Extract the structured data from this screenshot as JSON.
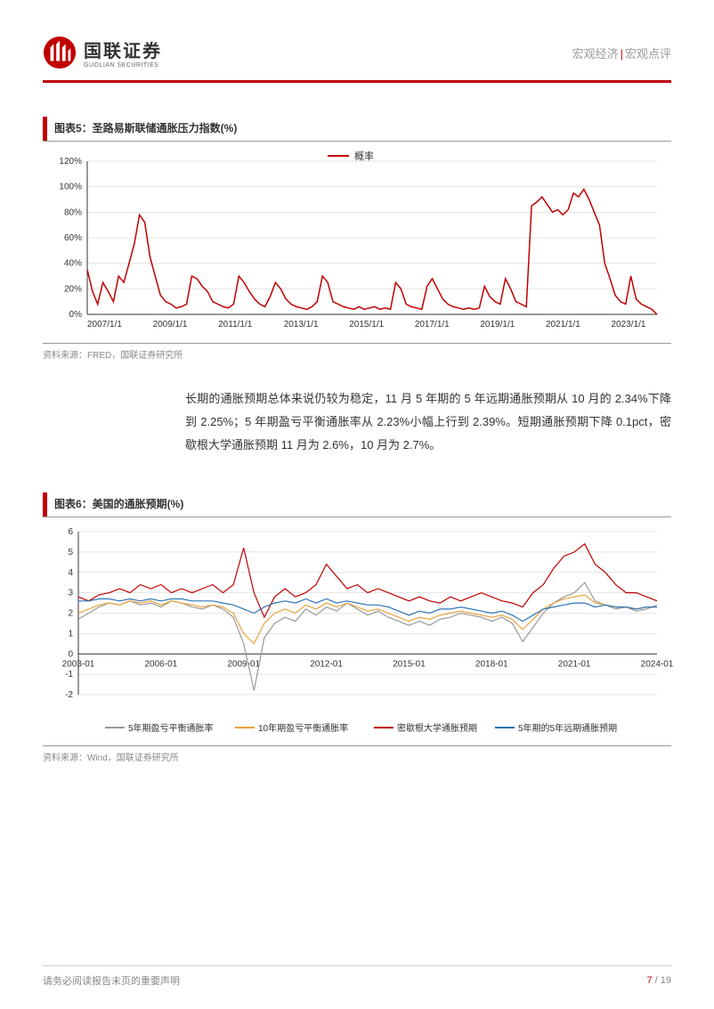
{
  "header": {
    "logo_cn": "国联证券",
    "logo_en": "GUOLIAN SECURITIES",
    "right_category": "宏观经济",
    "right_type": "宏观点评",
    "accent_color": "#c00000"
  },
  "chart5": {
    "title": "图表5：圣路易斯联储通胀压力指数(%)",
    "source": "资料来源：FRED，国联证券研究所",
    "type": "line",
    "legend_label": "概率",
    "series_color": "#c00000",
    "background_color": "#ffffff",
    "grid_color": "#cccccc",
    "axis_color": "#333333",
    "tick_fontsize": 10,
    "ylim": [
      0,
      120
    ],
    "ytick_step": 20,
    "yticks": [
      0,
      20,
      40,
      60,
      80,
      100,
      120
    ],
    "ytick_labels": [
      "0%",
      "20%",
      "40%",
      "60%",
      "80%",
      "100%",
      "120%"
    ],
    "xtick_labels": [
      "2007/1/1",
      "2009/1/1",
      "2011/1/1",
      "2013/1/1",
      "2015/1/1",
      "2017/1/1",
      "2019/1/1",
      "2021/1/1",
      "2023/1/1"
    ],
    "line_width": 1.5,
    "values": [
      35,
      18,
      8,
      25,
      18,
      10,
      30,
      25,
      40,
      55,
      78,
      72,
      45,
      30,
      15,
      10,
      8,
      5,
      6,
      8,
      30,
      28,
      22,
      18,
      10,
      8,
      6,
      5,
      8,
      30,
      25,
      18,
      12,
      8,
      6,
      14,
      25,
      20,
      12,
      8,
      6,
      5,
      4,
      6,
      10,
      30,
      25,
      10,
      8,
      6,
      5,
      4,
      6,
      4,
      5,
      6,
      4,
      5,
      4,
      25,
      20,
      8,
      6,
      5,
      4,
      22,
      28,
      20,
      12,
      8,
      6,
      5,
      4,
      5,
      4,
      5,
      22,
      14,
      10,
      8,
      28,
      20,
      10,
      8,
      6,
      85,
      88,
      92,
      86,
      80,
      82,
      78,
      82,
      95,
      92,
      98,
      90,
      80,
      70,
      40,
      28,
      15,
      10,
      8,
      30,
      12,
      8,
      6,
      4,
      0
    ]
  },
  "paragraph": "长期的通胀预期总体来说仍较为稳定，11 月 5 年期的 5 年远期通胀预期从 10 月的 2.34%下降到 2.25%；5 年期盈亏平衡通胀率从 2.23%小幅上行到 2.39%。短期通胀预期下降 0.1pct，密歇根大学通胀预期 11 月为 2.6%，10 月为 2.7%。",
  "chart6": {
    "title": "图表6：美国的通胀预期(%)",
    "source": "资料来源：Wind，国联证券研究所",
    "type": "line",
    "background_color": "#ffffff",
    "grid_color": "#cccccc",
    "axis_color": "#333333",
    "tick_fontsize": 10,
    "ylim": [
      -2,
      6
    ],
    "ytick_step": 1,
    "yticks": [
      -2,
      -1,
      0,
      1,
      2,
      3,
      4,
      5,
      6
    ],
    "xtick_labels": [
      "2003-01",
      "2006-01",
      "2009-01",
      "2012-01",
      "2015-01",
      "2018-01",
      "2021-01",
      "2024-01"
    ],
    "line_width": 1.2,
    "legend": [
      {
        "label": "5年期盈亏平衡通胀率",
        "color": "#999999"
      },
      {
        "label": "10年期盈亏平衡通胀率",
        "color": "#e8a33d"
      },
      {
        "label": "密歇根大学通胀预期",
        "color": "#c00000"
      },
      {
        "label": "5年期的5年远期通胀预期",
        "color": "#2e75b6"
      }
    ],
    "series": {
      "five_be": [
        1.7,
        2.0,
        2.3,
        2.5,
        2.4,
        2.6,
        2.4,
        2.5,
        2.3,
        2.6,
        2.5,
        2.3,
        2.2,
        2.4,
        2.2,
        1.8,
        0.5,
        -1.8,
        0.8,
        1.5,
        1.8,
        1.6,
        2.2,
        1.9,
        2.3,
        2.1,
        2.5,
        2.2,
        1.9,
        2.1,
        1.8,
        1.6,
        1.4,
        1.6,
        1.4,
        1.7,
        1.8,
        2.0,
        1.9,
        1.8,
        1.6,
        1.8,
        1.5,
        0.6,
        1.3,
        2.0,
        2.5,
        2.8,
        3.0,
        3.5,
        2.6,
        2.4,
        2.2,
        2.3,
        2.1,
        2.2,
        2.4
      ],
      "ten_be": [
        2.0,
        2.2,
        2.4,
        2.5,
        2.4,
        2.6,
        2.5,
        2.6,
        2.4,
        2.6,
        2.5,
        2.4,
        2.3,
        2.4,
        2.3,
        2.0,
        1.0,
        0.5,
        1.5,
        2.0,
        2.2,
        2.0,
        2.4,
        2.2,
        2.5,
        2.3,
        2.5,
        2.3,
        2.1,
        2.2,
        2.0,
        1.8,
        1.6,
        1.8,
        1.7,
        1.9,
        2.0,
        2.1,
        2.0,
        1.9,
        1.8,
        1.9,
        1.7,
        1.2,
        1.7,
        2.2,
        2.5,
        2.7,
        2.8,
        2.9,
        2.5,
        2.4,
        2.3,
        2.3,
        2.2,
        2.3,
        2.3
      ],
      "umich": [
        2.8,
        2.6,
        2.9,
        3.0,
        3.2,
        3.0,
        3.4,
        3.2,
        3.4,
        3.0,
        3.2,
        3.0,
        3.2,
        3.4,
        3.0,
        3.4,
        5.2,
        3.0,
        1.8,
        2.8,
        3.2,
        2.8,
        3.0,
        3.4,
        4.4,
        3.8,
        3.2,
        3.4,
        3.0,
        3.2,
        3.0,
        2.8,
        2.6,
        2.8,
        2.6,
        2.5,
        2.8,
        2.6,
        2.8,
        3.0,
        2.8,
        2.6,
        2.5,
        2.3,
        3.0,
        3.4,
        4.2,
        4.8,
        5.0,
        5.4,
        4.4,
        4.0,
        3.4,
        3.0,
        3.0,
        2.8,
        2.6
      ],
      "five_fwd": [
        2.6,
        2.6,
        2.7,
        2.7,
        2.6,
        2.7,
        2.6,
        2.7,
        2.6,
        2.7,
        2.7,
        2.6,
        2.6,
        2.6,
        2.5,
        2.4,
        2.2,
        2.0,
        2.3,
        2.5,
        2.6,
        2.5,
        2.7,
        2.5,
        2.7,
        2.5,
        2.6,
        2.5,
        2.4,
        2.4,
        2.3,
        2.1,
        1.9,
        2.1,
        2.0,
        2.2,
        2.2,
        2.3,
        2.2,
        2.1,
        2.0,
        2.1,
        1.9,
        1.6,
        1.9,
        2.2,
        2.3,
        2.4,
        2.5,
        2.5,
        2.3,
        2.4,
        2.3,
        2.3,
        2.2,
        2.3,
        2.3
      ]
    }
  },
  "footer": {
    "disclaimer": "请务必阅读报告末页的重要声明",
    "page_cur": "7",
    "page_total": "19"
  }
}
